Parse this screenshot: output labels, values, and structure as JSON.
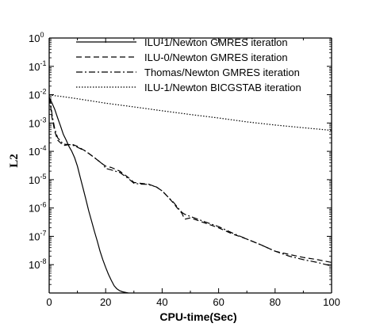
{
  "chart_data": {
    "type": "line",
    "xlabel": "CPU-time(Sec)",
    "ylabel": "L2",
    "xlim": [
      0,
      100
    ],
    "ylim_log10": [
      -9,
      0
    ],
    "y_scale": "log",
    "x_ticks": [
      0,
      20,
      40,
      60,
      80,
      100
    ],
    "y_ticks": [
      {
        "base": "10",
        "exp": "0",
        "value": 1
      },
      {
        "base": "10",
        "exp": "-1",
        "value": 0.1
      },
      {
        "base": "10",
        "exp": "-2",
        "value": 0.01
      },
      {
        "base": "10",
        "exp": "-3",
        "value": 0.001
      },
      {
        "base": "10",
        "exp": "-4",
        "value": 0.0001
      },
      {
        "base": "10",
        "exp": "-5",
        "value": 1e-05
      },
      {
        "base": "10",
        "exp": "-6",
        "value": 1e-06
      },
      {
        "base": "10",
        "exp": "-7",
        "value": 1e-07
      },
      {
        "base": "10",
        "exp": "-8",
        "value": 1e-08
      }
    ],
    "legend_position": "top-right",
    "grid": false,
    "series": [
      {
        "name": "ILU-1/Newton GMRES iteration",
        "style": "solid",
        "x": [
          0,
          0.5,
          1,
          2,
          3,
          4,
          5,
          6,
          7,
          8,
          9,
          10,
          11,
          12,
          13,
          14,
          15,
          16,
          17,
          18,
          19,
          20,
          21,
          22,
          23,
          24,
          25,
          26,
          27,
          28
        ],
        "y": [
          0.008,
          0.0065,
          0.005,
          0.003,
          0.0015,
          0.0008,
          0.0004,
          0.00025,
          0.00015,
          0.0001,
          6e-05,
          3e-05,
          1.2e-05,
          5e-06,
          2e-06,
          8e-07,
          3.5e-07,
          1.5e-07,
          7e-08,
          3e-08,
          1.5e-08,
          8e-09,
          4.5e-09,
          2.8e-09,
          1.8e-09,
          1.4e-09,
          1.2e-09,
          1.1e-09,
          1.05e-09,
          1e-09
        ]
      },
      {
        "name": "ILU-0/Newton GMRES iteration",
        "style": "dashed",
        "x": [
          0,
          0.5,
          1,
          2,
          3,
          5,
          8,
          10,
          13,
          16,
          19,
          20,
          22,
          25,
          28,
          30,
          32,
          35,
          38,
          40,
          42,
          44,
          45,
          46,
          47,
          48,
          50,
          55,
          60,
          65,
          70,
          75,
          80,
          85,
          90,
          95,
          100
        ],
        "y": [
          0.008,
          0.004,
          0.0015,
          0.0005,
          0.00025,
          0.00016,
          0.00018,
          0.00015,
          0.0001,
          6e-05,
          3.5e-05,
          3e-05,
          2.7e-05,
          2e-05,
          1.2e-05,
          8e-06,
          7.5e-06,
          7e-06,
          5.5e-06,
          4e-06,
          2.5e-06,
          1.5e-06,
          1.1e-06,
          8.5e-07,
          6.5e-07,
          4e-07,
          4.5e-07,
          3e-07,
          2e-07,
          1.2e-07,
          8e-08,
          5e-08,
          3e-08,
          2.3e-08,
          1.8e-08,
          1.5e-08,
          1.2e-08
        ]
      },
      {
        "name": "Thomas/Newton GMRES iteration",
        "style": "dash-dot",
        "x": [
          0,
          0.5,
          1,
          2,
          3,
          5,
          8,
          10,
          13,
          16,
          19,
          20,
          22,
          25,
          28,
          30,
          32,
          35,
          38,
          40,
          42,
          44,
          45,
          46,
          47,
          48,
          50,
          55,
          60,
          65,
          70,
          75,
          80,
          85,
          90,
          95,
          100
        ],
        "y": [
          0.008,
          0.005,
          0.002,
          0.0006,
          0.0003,
          0.00018,
          0.00017,
          0.00014,
          0.0001,
          6e-05,
          3.5e-05,
          2.5e-05,
          2.2e-05,
          1.8e-05,
          1.1e-05,
          7.5e-06,
          7e-06,
          6.8e-06,
          5.5e-06,
          4e-06,
          2.5e-06,
          1.6e-06,
          1.2e-06,
          9e-07,
          7e-07,
          6e-07,
          5e-07,
          3.3e-07,
          2.2e-07,
          1.3e-07,
          8e-08,
          5e-08,
          3e-08,
          2e-08,
          1.5e-08,
          1.2e-08,
          9e-09
        ]
      },
      {
        "name": "ILU-1/Newton BICGSTAB iteration",
        "style": "dotted",
        "x": [
          0,
          1,
          5,
          10,
          20,
          30,
          40,
          50,
          60,
          70,
          80,
          90,
          100
        ],
        "y": [
          0.01,
          0.0095,
          0.0085,
          0.0072,
          0.005,
          0.0037,
          0.0027,
          0.002,
          0.0015,
          0.0011,
          0.00085,
          0.00068,
          0.00055
        ]
      }
    ]
  }
}
